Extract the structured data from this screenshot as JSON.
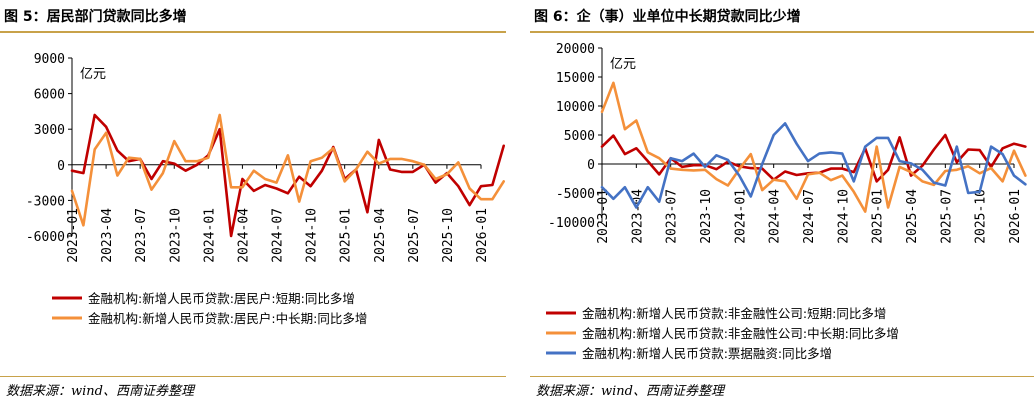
{
  "left": {
    "title": "图 5：居民部门贷款同比多增",
    "source": "数据来源：wind、西南证券整理",
    "chart_data": {
      "type": "line",
      "unit": "亿元",
      "ylim": [
        -6000,
        9000
      ],
      "yticks": [
        9000,
        6000,
        3000,
        0,
        -3000,
        -6000
      ],
      "ytick_labels": [
        "9000",
        "6000",
        "3000",
        "0",
        "-3000",
        "-6000"
      ],
      "x_start": "2023-01",
      "x_end": "2026-01",
      "xtick_labels": [
        "2023-01",
        "2023-04",
        "2023-07",
        "2023-10",
        "2024-01",
        "2024-04",
        "2024-07",
        "2024-10",
        "2025-01",
        "2025-04",
        "2025-07",
        "2025-10",
        "2026-01"
      ],
      "series": [
        {
          "name": "金融机构:新增人民币贷款:居民户:短期:同比多增",
          "color": "#c00000",
          "values": [
            -500,
            -700,
            4200,
            3200,
            1200,
            300,
            500,
            -1200,
            300,
            100,
            -500,
            0,
            800,
            3000,
            -6000,
            -1200,
            -2200,
            -1700,
            -2000,
            -2400,
            -1000,
            -1800,
            -500,
            1500,
            -1200,
            -400,
            -4000,
            2100,
            -400,
            -600,
            -600,
            0,
            -1500,
            -700,
            -1800,
            -3400,
            -1800,
            -1700,
            1600
          ]
        },
        {
          "name": "金融机构:新增人民币贷款:居民户:中长期:同比多增",
          "color": "#f4903a",
          "values": [
            -2200,
            -5100,
            1300,
            2700,
            -900,
            600,
            500,
            -2100,
            -700,
            2000,
            300,
            300,
            600,
            4200,
            -1900,
            -1900,
            -500,
            -1200,
            -1500,
            800,
            -3100,
            300,
            600,
            1400,
            -1400,
            -400,
            1100,
            100,
            500,
            500,
            300,
            0,
            -1200,
            -800,
            200,
            -2000,
            -2900,
            -2900,
            -1400
          ]
        }
      ]
    }
  },
  "right": {
    "title": "图 6：企（事）业单位中长期贷款同比少增",
    "source": "数据来源：wind、西南证券整理",
    "chart_data": {
      "type": "line",
      "unit": "亿元",
      "ylim": [
        -10000,
        20000
      ],
      "yticks": [
        20000,
        15000,
        10000,
        5000,
        0,
        -5000,
        -10000
      ],
      "ytick_labels": [
        "20000",
        "15000",
        "10000",
        "5000",
        "0",
        "-5000",
        "-10000"
      ],
      "x_start": "2023-01",
      "x_end": "2026-01",
      "xtick_labels": [
        "2023-01",
        "2023-04",
        "2023-07",
        "2023-10",
        "2024-01",
        "2024-04",
        "2024-07",
        "2024-10",
        "2025-01",
        "2025-04",
        "2025-07",
        "2025-10",
        "2026-01"
      ],
      "series": [
        {
          "name": "金融机构:新增人民币贷款:非金融性公司:短期:同比多增",
          "color": "#c00000",
          "values": [
            3000,
            4900,
            1700,
            2700,
            500,
            -1800,
            1000,
            -500,
            -200,
            -200,
            -900,
            400,
            -400,
            -700,
            -800,
            -2700,
            -1300,
            -1900,
            -1600,
            -1500,
            -800,
            -800,
            -1400,
            2700,
            -3000,
            -1000,
            4600,
            -2000,
            -300,
            2500,
            5000,
            300,
            2500,
            2400,
            -500,
            2700,
            3500,
            3000
          ]
        },
        {
          "name": "金融机构:新增人民币贷款:非金融性公司:中长期:同比多增",
          "color": "#f4903a",
          "values": [
            9000,
            14000,
            6000,
            7500,
            2000,
            1000,
            -800,
            -1000,
            -1100,
            -1000,
            -2600,
            -3700,
            -900,
            1700,
            -4500,
            -2700,
            -3000,
            -6000,
            -1800,
            -1500,
            -2800,
            -2000,
            -4800,
            -8200,
            3000,
            -7500,
            -500,
            -1400,
            -3000,
            -3600,
            -1200,
            -1000,
            -400,
            -1600,
            -700,
            -3000,
            2300,
            -2000
          ]
        },
        {
          "name": "金融机构:新增人民币贷款:票据融资:同比多增",
          "color": "#4472c4",
          "values": [
            -4000,
            -6000,
            -4000,
            -7500,
            -4000,
            -6500,
            1000,
            500,
            1800,
            -500,
            1500,
            700,
            -2000,
            -5600,
            0,
            5000,
            7000,
            3500,
            500,
            1800,
            2000,
            1800,
            -3000,
            3000,
            4500,
            4500,
            500,
            100,
            -1000,
            -3200,
            -3700,
            3000,
            -5000,
            -4800,
            3000,
            1700,
            -2000,
            -3500
          ]
        }
      ]
    }
  }
}
